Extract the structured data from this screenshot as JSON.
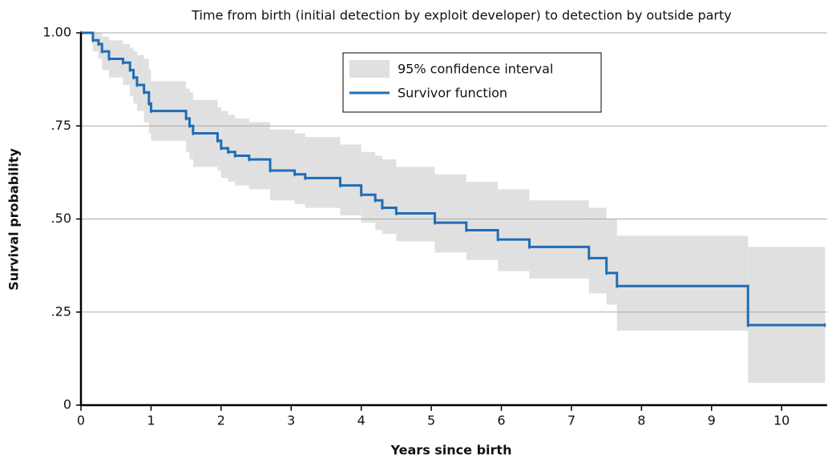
{
  "chart_data": {
    "type": "line",
    "step": true,
    "title": "Time from birth (initial detection by exploit developer) to detection by outside party",
    "x_label": "Years since birth",
    "y_label": "Survival probability",
    "xlim": [
      0,
      10.65
    ],
    "ylim": [
      0,
      1
    ],
    "xticks": [
      0,
      1,
      2,
      3,
      4,
      5,
      6,
      7,
      8,
      9,
      10
    ],
    "yticks": [
      0,
      {
        "value": 0.25,
        "label": ".25"
      },
      {
        "value": 0.5,
        "label": ".50"
      },
      {
        "value": 0.75,
        "label": ".75"
      },
      {
        "value": 1,
        "label": "1.00"
      }
    ],
    "grid": true,
    "legend": "top",
    "x": [
      0,
      0.17,
      0.25,
      0.3,
      0.4,
      0.6,
      0.7,
      0.75,
      0.8,
      0.9,
      0.97,
      1.0,
      1.5,
      1.55,
      1.6,
      1.95,
      2.0,
      2.1,
      2.2,
      2.4,
      2.7,
      3.05,
      3.2,
      3.7,
      4.0,
      4.2,
      4.3,
      4.5,
      5.05,
      5.5,
      5.95,
      6.4,
      7.25,
      7.5,
      7.65,
      9.52,
      10.62
    ],
    "band": {
      "name": "95% confidence interval",
      "color": "#e0e0e0",
      "lower": [
        1,
        0.95,
        0.93,
        0.9,
        0.88,
        0.86,
        0.83,
        0.81,
        0.79,
        0.76,
        0.73,
        0.71,
        0.68,
        0.66,
        0.64,
        0.63,
        0.61,
        0.6,
        0.59,
        0.58,
        0.55,
        0.54,
        0.53,
        0.51,
        0.49,
        0.47,
        0.46,
        0.44,
        0.41,
        0.39,
        0.36,
        0.34,
        0.3,
        0.27,
        0.2,
        0.06,
        0.06
      ],
      "upper": [
        1,
        1,
        1,
        0.99,
        0.98,
        0.97,
        0.96,
        0.95,
        0.94,
        0.93,
        0.9,
        0.87,
        0.85,
        0.84,
        0.82,
        0.8,
        0.79,
        0.78,
        0.77,
        0.76,
        0.74,
        0.73,
        0.72,
        0.7,
        0.68,
        0.67,
        0.66,
        0.64,
        0.62,
        0.6,
        0.58,
        0.55,
        0.53,
        0.5,
        0.455,
        0.425,
        0.425
      ]
    },
    "series": [
      {
        "name": "Survivor function",
        "color": "#1f6db5",
        "values": [
          1,
          0.98,
          0.97,
          0.95,
          0.93,
          0.92,
          0.9,
          0.88,
          0.86,
          0.84,
          0.81,
          0.79,
          0.77,
          0.75,
          0.73,
          0.71,
          0.69,
          0.68,
          0.67,
          0.66,
          0.63,
          0.62,
          0.61,
          0.59,
          0.565,
          0.55,
          0.53,
          0.515,
          0.49,
          0.47,
          0.445,
          0.425,
          0.395,
          0.355,
          0.32,
          0.215,
          0.215
        ]
      }
    ]
  }
}
